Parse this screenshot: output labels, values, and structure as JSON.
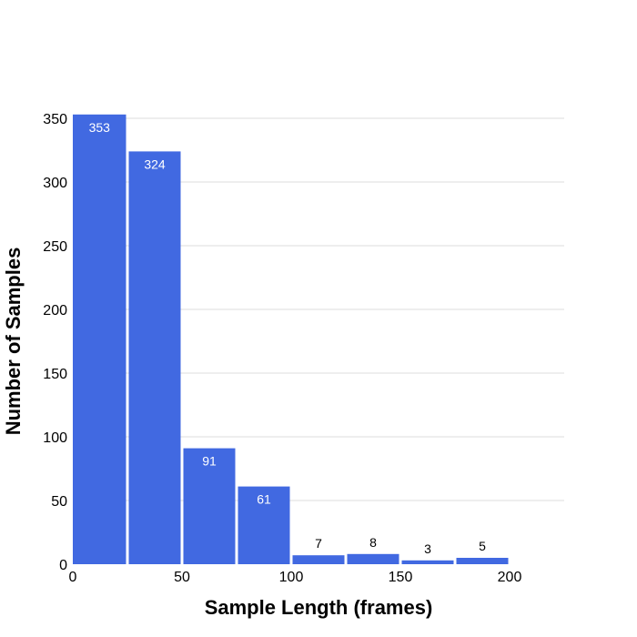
{
  "chart_data": {
    "type": "bar",
    "title": "",
    "xlabel": "Sample Length (frames)",
    "ylabel": "Number of Samples",
    "bins": [
      {
        "start": 0,
        "end": 25,
        "value": 353
      },
      {
        "start": 25,
        "end": 50,
        "value": 324
      },
      {
        "start": 50,
        "end": 75,
        "value": 91
      },
      {
        "start": 75,
        "end": 100,
        "value": 61
      },
      {
        "start": 100,
        "end": 125,
        "value": 7
      },
      {
        "start": 125,
        "end": 150,
        "value": 8
      },
      {
        "start": 150,
        "end": 175,
        "value": 3
      },
      {
        "start": 175,
        "end": 200,
        "value": 5
      }
    ],
    "data_labels": [
      "353",
      "324",
      "91",
      "61",
      "7",
      "8",
      "3",
      "5"
    ],
    "xlim": [
      0,
      225
    ],
    "ylim": [
      0,
      350
    ],
    "x_ticks": [
      0,
      50,
      100,
      150,
      200
    ],
    "x_tick_labels": [
      "0",
      "50",
      "100",
      "150",
      "200"
    ],
    "y_ticks": [
      0,
      50,
      100,
      150,
      200,
      250,
      300,
      350
    ],
    "y_tick_labels": [
      "0",
      "50",
      "100",
      "150",
      "200",
      "250",
      "300",
      "350"
    ],
    "grid": true,
    "bar_color": "#4169e1",
    "label_inside_color": "#ffffff",
    "label_outside_color": "#000000"
  }
}
